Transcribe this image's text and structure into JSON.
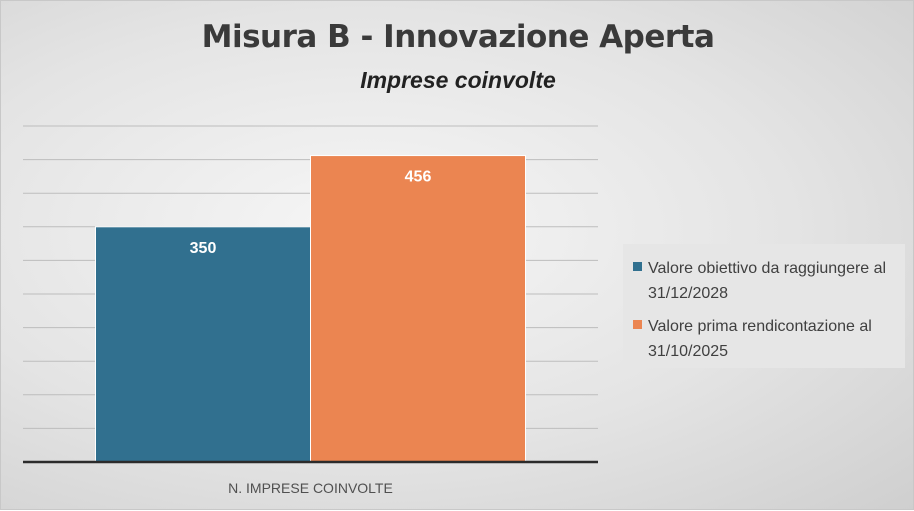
{
  "chart_data": {
    "type": "bar",
    "title": "Misura B - Innovazione Aperta",
    "subtitle": "Imprese coinvolte",
    "categories": [
      "N. IMPRESE COINVOLTE"
    ],
    "series": [
      {
        "name": "Valore obiettivo da raggiungere al 31/12/2028",
        "values": [
          350
        ],
        "color": "#31708f",
        "label": "350"
      },
      {
        "name": "Valore prima rendicontazione al 31/10/2025",
        "values": [
          456
        ],
        "color": "#eb8551",
        "label": "456"
      }
    ],
    "ylim": [
      0,
      500
    ],
    "grid": true,
    "legend_position": "right"
  }
}
